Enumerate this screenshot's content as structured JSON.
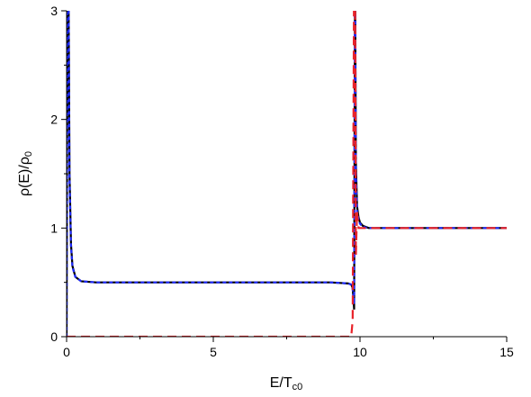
{
  "chart_data": {
    "type": "line",
    "xlabel": [
      "E/T",
      "c0"
    ],
    "ylabel": [
      "ρ(E)/ρ",
      "0"
    ],
    "x": [
      0,
      0.03,
      0.06,
      0.1,
      0.15,
      0.2,
      0.3,
      0.5,
      1,
      3,
      5,
      7,
      9,
      9.6,
      9.7,
      9.75,
      9.8,
      9.83,
      9.86,
      9.9,
      9.95,
      10.0,
      10.1,
      10.3,
      11,
      13,
      15
    ],
    "series": [
      {
        "color": "#000000",
        "dash": "none",
        "values": [
          0,
          3.5,
          3.5,
          1.5,
          0.85,
          0.65,
          0.55,
          0.51,
          0.5,
          0.5,
          0.5,
          0.5,
          0.5,
          0.49,
          0.48,
          0.45,
          0.25,
          3.5,
          1.6,
          1.2,
          1.1,
          1.05,
          1.02,
          1.0,
          1.0,
          1.0,
          1.0
        ]
      },
      {
        "color": "#1f2bff",
        "dash": "4 3",
        "values": [
          0,
          3.5,
          3.5,
          1.45,
          0.83,
          0.64,
          0.55,
          0.51,
          0.5,
          0.5,
          0.5,
          0.5,
          0.5,
          0.49,
          0.48,
          0.44,
          0.3,
          3.5,
          1.5,
          1.15,
          1.08,
          1.04,
          1.01,
          1.0,
          1.0,
          1.0,
          1.0
        ]
      },
      {
        "color": "#e8232a",
        "dash": "10 6",
        "values": [
          0,
          0,
          0,
          0,
          0,
          0,
          0,
          0,
          0,
          0,
          0,
          0,
          0,
          0,
          0,
          0.15,
          3.5,
          3.5,
          0.75,
          1.15,
          1.0,
          1.0,
          1.0,
          1.0,
          1.0,
          1.0,
          1.0
        ]
      }
    ],
    "xlim": [
      0,
      15
    ],
    "xticks": [
      0,
      5,
      10,
      15
    ],
    "xminor": [
      2.5,
      7.5,
      12.5
    ],
    "ylim": [
      0,
      3
    ],
    "yticks": [
      0,
      1,
      2,
      3
    ],
    "yminor": [
      0.5,
      1.5,
      2.5
    ]
  }
}
